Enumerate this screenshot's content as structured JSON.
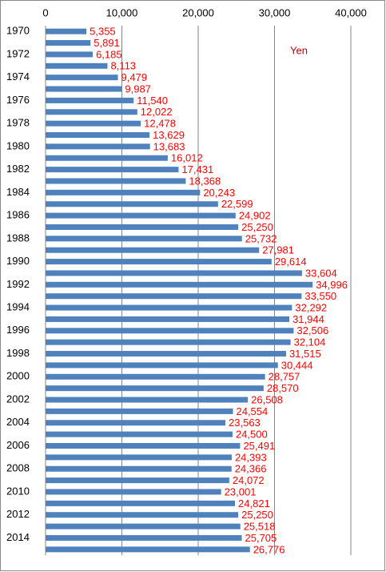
{
  "chart_data": {
    "type": "bar",
    "orientation": "horizontal",
    "annotation": "Yen",
    "categories": [
      "1970",
      null,
      "1972",
      null,
      "1974",
      null,
      "1976",
      null,
      "1978",
      null,
      "1980",
      null,
      "1982",
      null,
      "1984",
      null,
      "1986",
      null,
      "1988",
      null,
      "1990",
      null,
      "1992",
      null,
      "1994",
      null,
      "1996",
      null,
      "1998",
      null,
      "2000",
      null,
      "2002",
      null,
      "2004",
      null,
      "2006",
      null,
      "2008",
      null,
      "2010",
      null,
      "2012",
      null,
      "2014",
      null
    ],
    "values": [
      5355,
      5891,
      6185,
      8113,
      9479,
      9987,
      11540,
      12022,
      12478,
      13629,
      13683,
      16012,
      17431,
      18368,
      20243,
      22599,
      24902,
      25250,
      25732,
      27981,
      29614,
      33604,
      34996,
      33550,
      32292,
      31944,
      32506,
      32104,
      31515,
      30444,
      28757,
      28570,
      26508,
      24554,
      23563,
      24500,
      25491,
      24393,
      24366,
      24072,
      23001,
      24821,
      25250,
      25518,
      25705,
      26776
    ],
    "value_labels": [
      "5,355",
      "5,891",
      "6,185",
      "8,113",
      "9,479",
      "9,987",
      "11,540",
      "12,022",
      "12,478",
      "13,629",
      "13,683",
      "16,012",
      "17,431",
      "18,368",
      "20,243",
      "22,599",
      "24,902",
      "25,250",
      "25,732",
      "27,981",
      "29,614",
      "33,604",
      "34,996",
      "33,550",
      "32,292",
      "31,944",
      "32,506",
      "32,104",
      "31,515",
      "30,444",
      "28,757",
      "28,570",
      "26,508",
      "24,554",
      "23,563",
      "24,500",
      "25,491",
      "24,393",
      "24,366",
      "24,072",
      "23,001",
      "24,821",
      "25,250",
      "25,518",
      "25,705",
      "26,776"
    ],
    "color": "#4f81bd",
    "label_color": "#ff0000",
    "xlim": [
      0,
      40000
    ],
    "xticks": [
      0,
      {
        "value": 10000,
        "label": "10,000"
      },
      {
        "value": 20000,
        "label": "20,000"
      },
      {
        "value": 30000,
        "label": "30,000"
      },
      {
        "value": 40000,
        "label": "40,000"
      }
    ],
    "grid": true
  }
}
